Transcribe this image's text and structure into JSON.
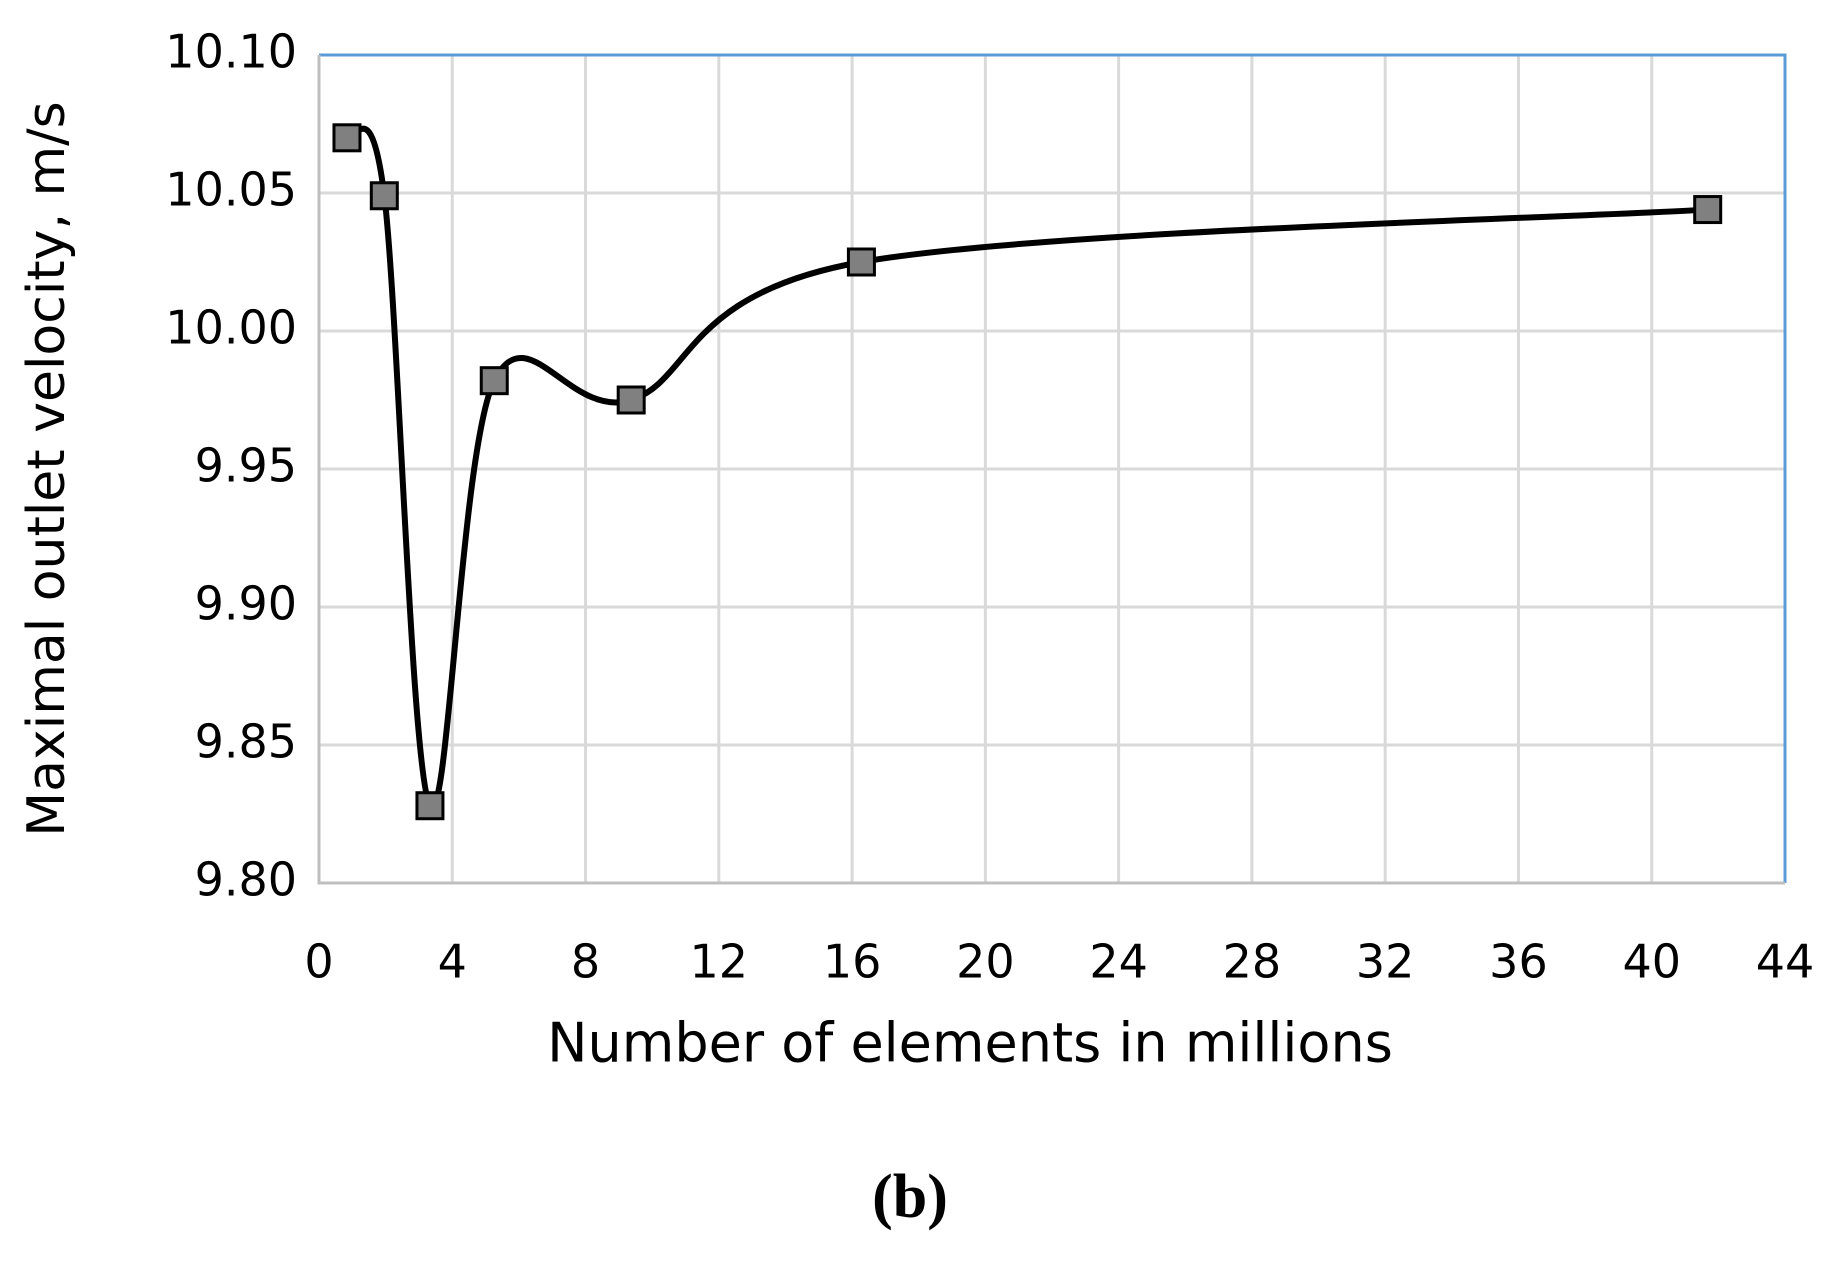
{
  "chart_data": {
    "type": "line",
    "x_label": "Number of elements in millions",
    "y_label": "Maximal outlet velocity, m/s",
    "caption": "(b)",
    "series": [
      {
        "x": [
          0.84,
          1.96,
          3.33,
          5.26,
          9.37,
          16.28,
          41.68
        ],
        "values": [
          10.07,
          10.049,
          9.828,
          9.982,
          9.975,
          10.025,
          10.044
        ],
        "color": "#000000",
        "marker_color": "#808080"
      }
    ],
    "xlim": [
      0,
      44
    ],
    "xticks": [
      0,
      4,
      8,
      12,
      16,
      20,
      24,
      28,
      32,
      36,
      40,
      44
    ],
    "ylim": [
      9.8,
      10.1
    ],
    "yticks": [
      {
        "value": 9.8,
        "label": "9.80"
      },
      9.85,
      {
        "value": 9.9,
        "label": "9.90"
      },
      9.95,
      {
        "value": 10.0,
        "label": "10.00"
      },
      10.05,
      {
        "value": 10.1,
        "label": "10.10"
      }
    ],
    "grid": true,
    "smooth": true
  }
}
